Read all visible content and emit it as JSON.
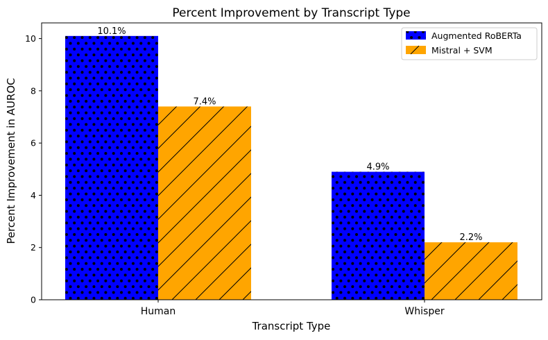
{
  "chart_data": {
    "type": "bar",
    "title": "Percent Improvement by Transcript Type",
    "xlabel": "Transcript Type",
    "ylabel": "Percent Improvement in AUROC",
    "categories": [
      "Human",
      "Whisper"
    ],
    "series": [
      {
        "name": "Augmented RoBERTa",
        "values": [
          10.1,
          4.9
        ],
        "labels": [
          "10.1%",
          "4.9%"
        ],
        "color": "#0000ff",
        "hatch": "dots"
      },
      {
        "name": "Mistral + SVM",
        "values": [
          7.4,
          2.2
        ],
        "labels": [
          "7.4%",
          "2.2%"
        ],
        "color": "#ffa500",
        "hatch": "diagonal"
      }
    ],
    "ylim": [
      0,
      10.6
    ],
    "yticks": [
      "0",
      "2",
      "4",
      "6",
      "8",
      "10"
    ],
    "grid": false,
    "legend_position": "top-right"
  }
}
